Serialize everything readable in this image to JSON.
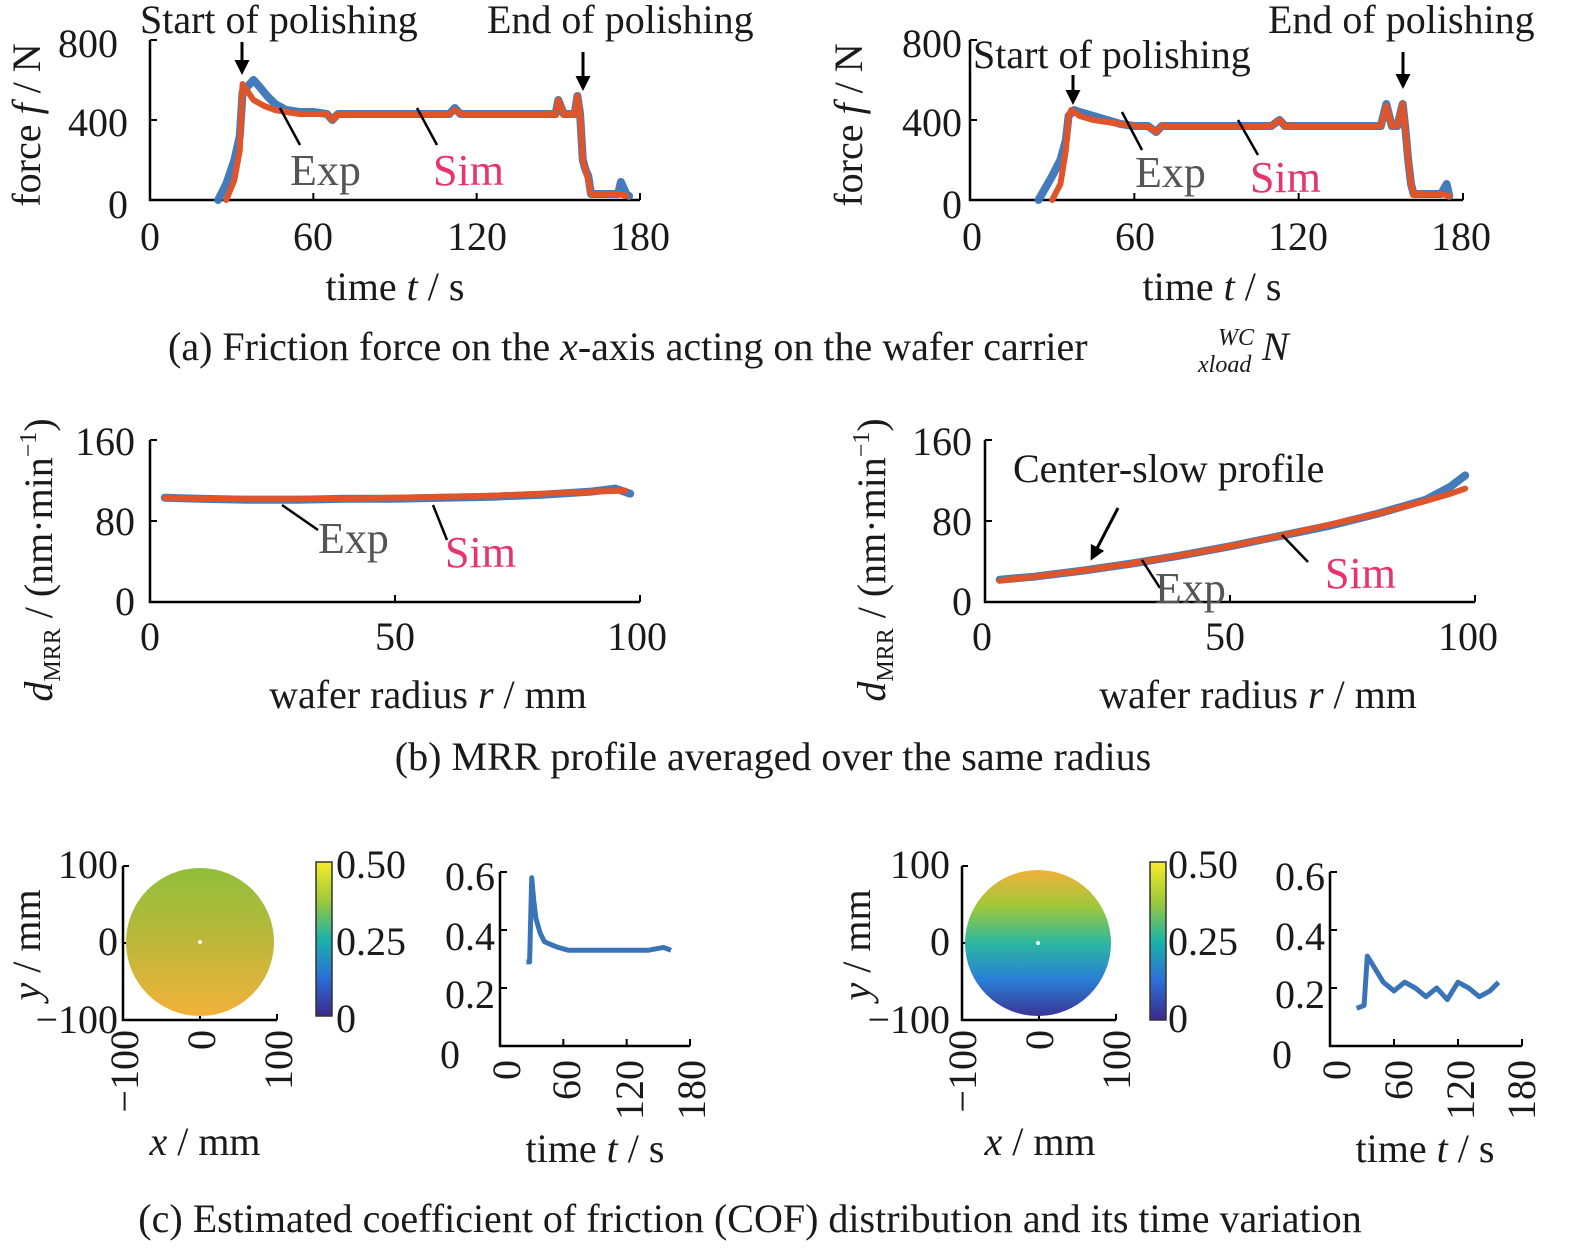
{
  "captions": {
    "a_prefix": "(a) Friction force on the ",
    "a_x": "x",
    "a_suffix": "-axis acting on the wafer carrier ",
    "a_sup": "WC",
    "a_sub": "xload",
    "a_N": "N",
    "b": "(b) MRR profile averaged over the same radius",
    "c": "(c) Estimated coefficient of friction (COF) distribution and its time variation"
  },
  "annotations": {
    "start": "Start of polishing",
    "end": "End of polishing",
    "center_slow": "Center-slow profile",
    "exp": "Exp",
    "sim": "Sim"
  },
  "axes_text": {
    "force_label": "force ",
    "force_f": "f",
    "force_unit": " / N",
    "time_label": "time ",
    "time_t": "t",
    "time_unit": " / s",
    "mrr_d": "d",
    "mrr_sub": "MRR",
    "mrr_unit": " / (nm·min",
    "mrr_exp": "−1",
    "mrr_close": ")",
    "radius_label": "wafer radius ",
    "radius_r": "r",
    "radius_unit": " / mm",
    "x_label": "x",
    "y_label": "y",
    "mm_unit": " / mm"
  },
  "colors": {
    "exp": "#3a74b8",
    "sim": "#e0542a",
    "exp_label": "#555555",
    "sim_label": "#e8336b"
  },
  "chart_data": [
    {
      "id": "force_left",
      "type": "line",
      "xlim": [
        0,
        180
      ],
      "ylim": [
        0,
        800
      ],
      "xticks": [
        "0",
        "60",
        "120",
        "180"
      ],
      "yticks": [
        "0",
        "400",
        "800"
      ],
      "series": [
        {
          "name": "Exp",
          "x": [
            25,
            28,
            31,
            33,
            34,
            36,
            38,
            40,
            43,
            46,
            50,
            55,
            60,
            65,
            67,
            69,
            72,
            80,
            90,
            100,
            110,
            112,
            114,
            117,
            125,
            135,
            145,
            149,
            150,
            152,
            154,
            156,
            157,
            158,
            159,
            160,
            161,
            162,
            164,
            168,
            172,
            173,
            175,
            176
          ],
          "y": [
            0,
            80,
            200,
            320,
            540,
            570,
            600,
            570,
            520,
            480,
            450,
            440,
            440,
            430,
            400,
            430,
            430,
            430,
            430,
            430,
            430,
            460,
            430,
            430,
            430,
            430,
            430,
            430,
            500,
            430,
            430,
            430,
            520,
            430,
            200,
            150,
            120,
            30,
            30,
            30,
            30,
            90,
            30,
            20
          ]
        },
        {
          "name": "Sim",
          "x": [
            28,
            31,
            33,
            34,
            35,
            38,
            42,
            46,
            50,
            55,
            60,
            65,
            67,
            69,
            72,
            80,
            90,
            100,
            110,
            112,
            114,
            117,
            125,
            135,
            145,
            149,
            150,
            152,
            154,
            156,
            157,
            158,
            159,
            160,
            161,
            162,
            164,
            168,
            172,
            175
          ],
          "y": [
            0,
            100,
            250,
            580,
            560,
            500,
            470,
            450,
            440,
            430,
            430,
            430,
            400,
            430,
            430,
            430,
            430,
            430,
            430,
            450,
            430,
            430,
            430,
            430,
            430,
            430,
            500,
            430,
            430,
            430,
            520,
            430,
            200,
            150,
            100,
            30,
            30,
            30,
            30,
            20
          ]
        }
      ]
    },
    {
      "id": "force_right",
      "type": "line",
      "xlim": [
        0,
        180
      ],
      "ylim": [
        0,
        800
      ],
      "xticks": [
        "0",
        "60",
        "120",
        "180"
      ],
      "yticks": [
        "0",
        "400",
        "800"
      ],
      "series": [
        {
          "name": "Exp",
          "x": [
            25,
            30,
            33,
            35,
            36,
            38,
            40,
            45,
            50,
            55,
            60,
            65,
            68,
            70,
            72,
            80,
            90,
            100,
            110,
            113,
            115,
            118,
            125,
            135,
            145,
            150,
            152,
            154,
            156,
            158,
            159,
            160,
            161,
            162,
            164,
            168,
            172,
            174,
            175
          ],
          "y": [
            0,
            120,
            200,
            300,
            420,
            450,
            440,
            420,
            400,
            380,
            370,
            370,
            340,
            370,
            370,
            370,
            370,
            370,
            370,
            400,
            370,
            370,
            370,
            370,
            370,
            370,
            480,
            370,
            370,
            480,
            350,
            200,
            80,
            30,
            30,
            30,
            30,
            80,
            20
          ]
        },
        {
          "name": "Sim",
          "x": [
            30,
            33,
            35,
            36,
            37,
            40,
            45,
            50,
            55,
            60,
            65,
            68,
            70,
            72,
            80,
            90,
            100,
            110,
            113,
            115,
            118,
            125,
            135,
            145,
            150,
            152,
            154,
            156,
            158,
            159,
            160,
            161,
            162,
            164,
            168,
            172,
            175
          ],
          "y": [
            0,
            80,
            250,
            420,
            450,
            420,
            400,
            390,
            380,
            370,
            370,
            340,
            370,
            370,
            370,
            370,
            370,
            370,
            400,
            370,
            370,
            370,
            370,
            370,
            370,
            470,
            370,
            370,
            480,
            350,
            200,
            80,
            30,
            30,
            30,
            30,
            20
          ]
        }
      ]
    },
    {
      "id": "mrr_left",
      "type": "line",
      "xlim": [
        0,
        100
      ],
      "ylim": [
        0,
        160
      ],
      "xticks": [
        "0",
        "50",
        "100"
      ],
      "yticks": [
        "0",
        "80",
        "160"
      ],
      "series": [
        {
          "name": "Exp",
          "x": [
            3,
            10,
            20,
            30,
            40,
            50,
            60,
            70,
            80,
            90,
            95,
            98
          ],
          "y": [
            103,
            102,
            101,
            101,
            102,
            102,
            103,
            104,
            106,
            109,
            112,
            107
          ]
        },
        {
          "name": "Sim",
          "x": [
            3,
            10,
            20,
            30,
            40,
            50,
            60,
            70,
            80,
            90,
            97
          ],
          "y": [
            103,
            102,
            102,
            102,
            102,
            103,
            104,
            105,
            107,
            109,
            110
          ]
        }
      ]
    },
    {
      "id": "mrr_right",
      "type": "line",
      "xlim": [
        0,
        100
      ],
      "ylim": [
        0,
        160
      ],
      "xticks": [
        "0",
        "50",
        "100"
      ],
      "yticks": [
        "0",
        "80",
        "160"
      ],
      "series": [
        {
          "name": "Exp",
          "x": [
            3,
            10,
            20,
            30,
            40,
            50,
            60,
            70,
            80,
            90,
            95,
            98
          ],
          "y": [
            22,
            25,
            31,
            38,
            46,
            55,
            65,
            75,
            87,
            101,
            114,
            125
          ]
        },
        {
          "name": "Sim",
          "x": [
            3,
            10,
            20,
            30,
            40,
            50,
            60,
            70,
            80,
            90,
            95,
            98
          ],
          "y": [
            21,
            25,
            31,
            38,
            46,
            55,
            65,
            76,
            87,
            100,
            107,
            112
          ]
        }
      ]
    },
    {
      "id": "cof_map_left",
      "type": "heatmap",
      "xlim": [
        -100,
        100
      ],
      "ylim": [
        -100,
        100
      ],
      "xticks": [
        "−100",
        "0",
        "100"
      ],
      "yticks": [
        "−100",
        "0",
        "100"
      ],
      "colorbar": {
        "min": 0,
        "max": 0.5,
        "ticks": [
          "0",
          "0.25",
          "0.50"
        ]
      },
      "value_top": 0.35,
      "value_bottom": 0.41
    },
    {
      "id": "cof_time_left",
      "type": "line",
      "xlim": [
        0,
        180
      ],
      "ylim": [
        0,
        0.6
      ],
      "xticks": [
        "0",
        "60",
        "120",
        "180"
      ],
      "yticks": [
        "0",
        "0.2",
        "0.4",
        "0.6"
      ],
      "series": [
        {
          "name": "",
          "x": [
            25,
            28,
            30,
            32,
            34,
            38,
            42,
            48,
            55,
            65,
            80,
            100,
            120,
            140,
            155,
            162
          ],
          "y": [
            0.29,
            0.29,
            0.58,
            0.5,
            0.44,
            0.39,
            0.36,
            0.35,
            0.34,
            0.33,
            0.33,
            0.33,
            0.33,
            0.33,
            0.34,
            0.33
          ]
        }
      ]
    },
    {
      "id": "cof_map_right",
      "type": "heatmap",
      "xlim": [
        -100,
        100
      ],
      "ylim": [
        -100,
        100
      ],
      "xticks": [
        "−100",
        "0",
        "100"
      ],
      "yticks": [
        "−100",
        "0",
        "100"
      ],
      "colorbar": {
        "min": 0,
        "max": 0.5,
        "ticks": [
          "0",
          "0.25",
          "0.50"
        ]
      },
      "value_top": 0.42,
      "value_bottom": 0.06
    },
    {
      "id": "cof_time_right",
      "type": "line",
      "xlim": [
        0,
        180
      ],
      "ylim": [
        0,
        0.6
      ],
      "xticks": [
        "0",
        "60",
        "120",
        "180"
      ],
      "yticks": [
        "0",
        "0.2",
        "0.4",
        "0.6"
      ],
      "series": [
        {
          "name": "",
          "x": [
            25,
            32,
            35,
            40,
            50,
            60,
            70,
            80,
            90,
            100,
            110,
            120,
            130,
            140,
            150,
            158
          ],
          "y": [
            0.13,
            0.14,
            0.31,
            0.28,
            0.22,
            0.19,
            0.22,
            0.2,
            0.17,
            0.2,
            0.16,
            0.22,
            0.2,
            0.17,
            0.19,
            0.22
          ]
        }
      ]
    }
  ]
}
